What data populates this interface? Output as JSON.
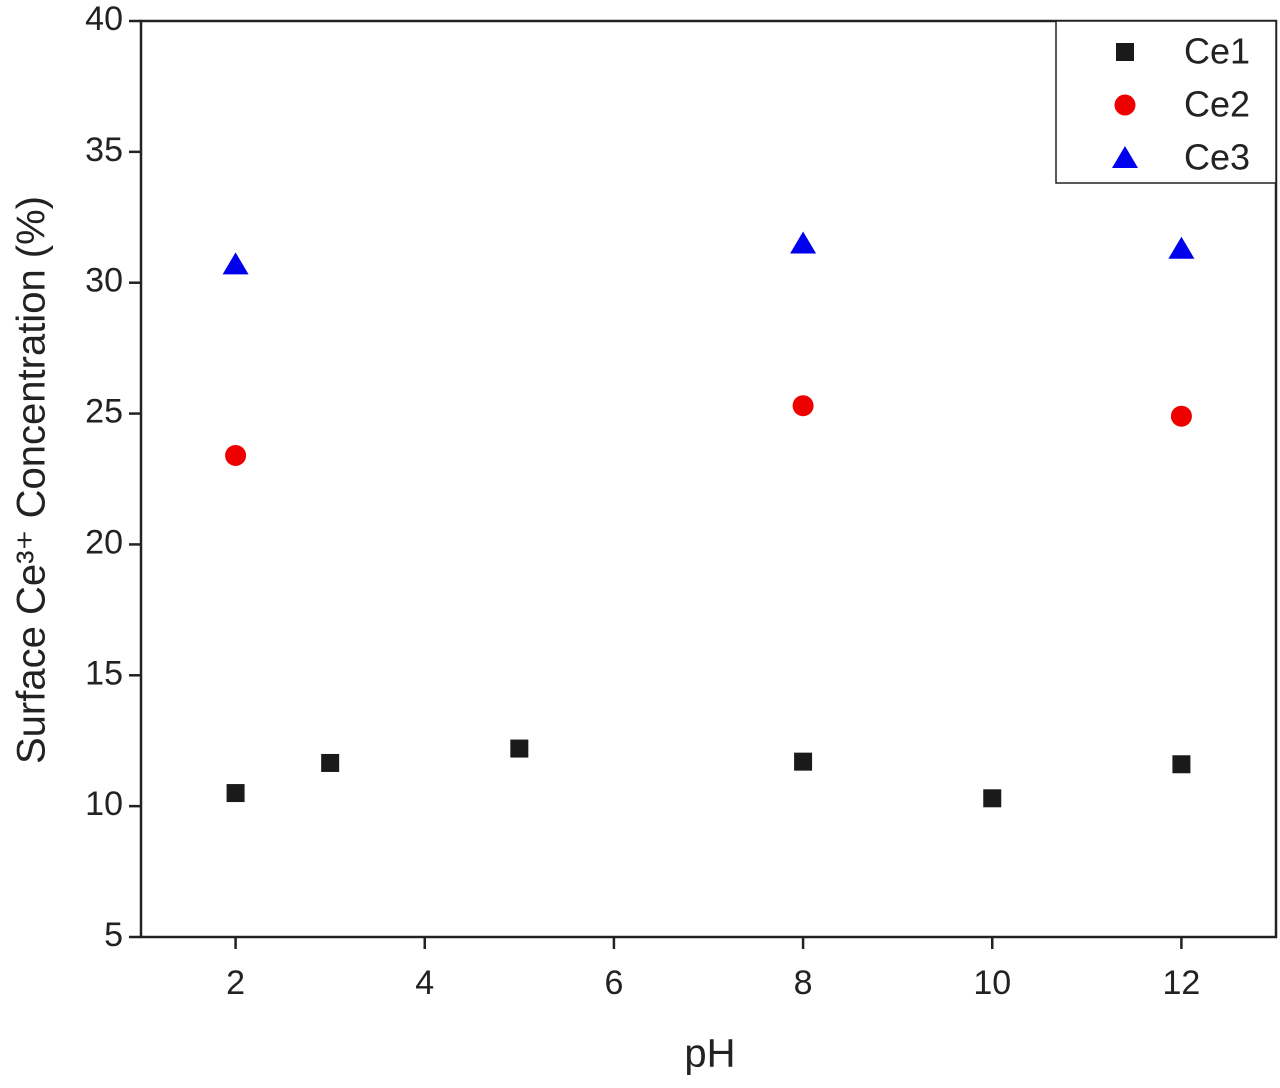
{
  "chart_data": {
    "type": "scatter",
    "x_label": "pH",
    "y_label": "Surface Ce³⁺ Concentration (%)",
    "xlim": [
      1,
      13
    ],
    "xticks": [
      2,
      4,
      6,
      8,
      10,
      12
    ],
    "ylim": [
      5,
      40
    ],
    "yticks": [
      5,
      10,
      15,
      20,
      25,
      30,
      35,
      40
    ],
    "grid": false,
    "legend": "upper right",
    "series": [
      {
        "name": "Ce1",
        "color": "#1a1a1a",
        "marker": "square",
        "x": [
          2,
          3,
          5,
          8,
          10,
          12
        ],
        "values": [
          10.5,
          11.65,
          12.2,
          11.7,
          10.3,
          11.6
        ]
      },
      {
        "name": "Ce2",
        "color": "#ee0000",
        "marker": "circle",
        "x": [
          2,
          8,
          12
        ],
        "values": [
          23.4,
          25.3,
          24.9
        ]
      },
      {
        "name": "Ce3",
        "color": "#0000ee",
        "marker": "triangle",
        "x": [
          2,
          8,
          12
        ],
        "values": [
          30.7,
          31.5,
          31.3
        ]
      }
    ]
  }
}
